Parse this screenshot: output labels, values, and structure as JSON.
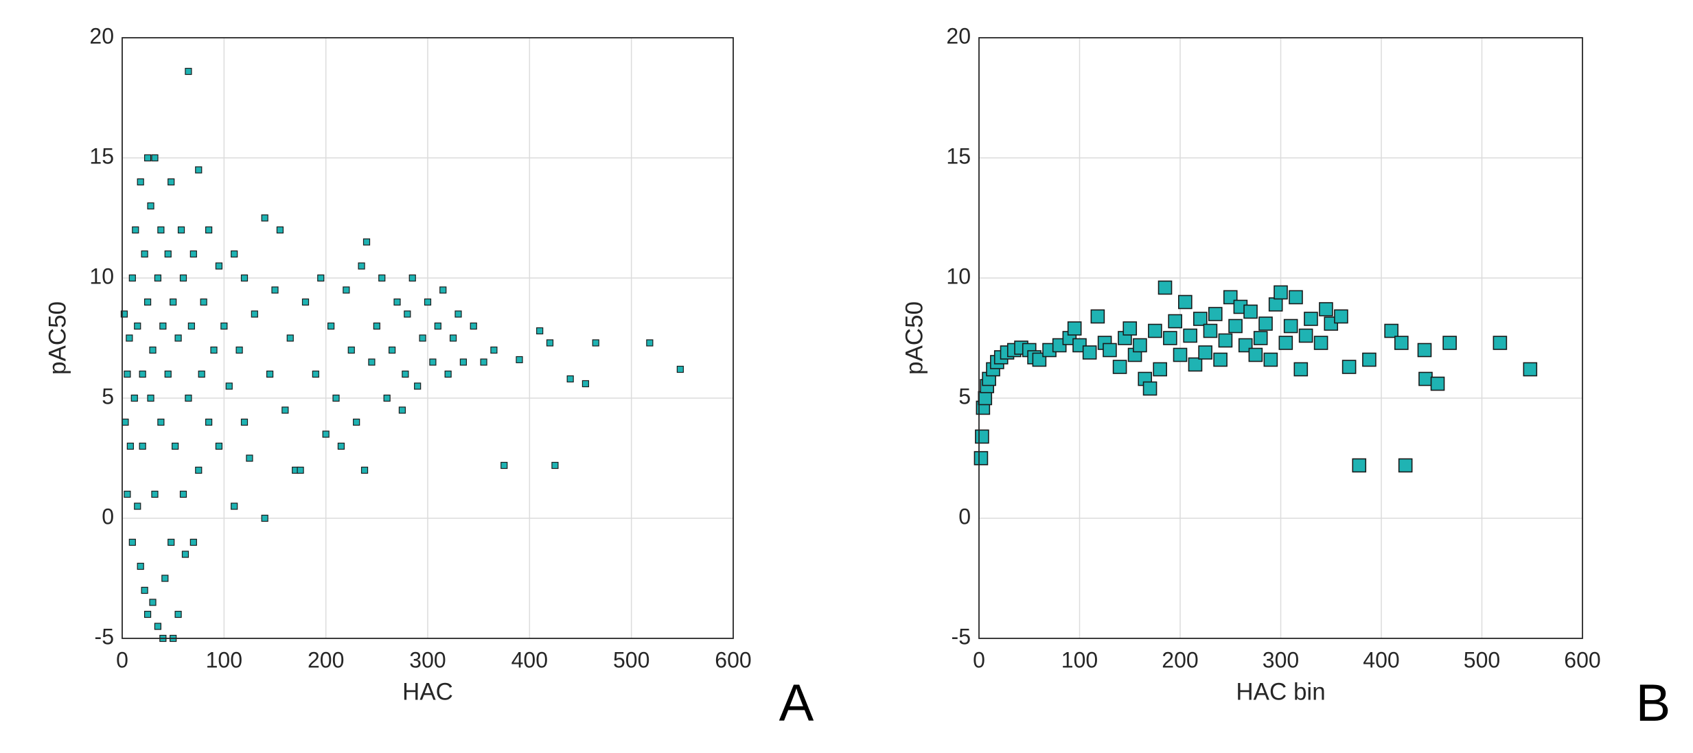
{
  "chart_data": [
    {
      "type": "scatter",
      "x_label": "HAC",
      "y_label": "pAC50",
      "annotation": "A",
      "color": "#1fb3b3",
      "grid": true,
      "xlim": [
        0,
        600
      ],
      "ylim": [
        -5,
        20
      ],
      "xticks": [
        0,
        100,
        200,
        300,
        400,
        500,
        600
      ],
      "yticks": [
        -5,
        0,
        5,
        10,
        15,
        20
      ],
      "x": [
        2,
        3,
        5,
        5,
        7,
        8,
        10,
        10,
        12,
        13,
        15,
        15,
        18,
        18,
        20,
        20,
        22,
        22,
        25,
        25,
        25,
        28,
        28,
        30,
        30,
        32,
        32,
        35,
        35,
        38,
        38,
        40,
        40,
        42,
        45,
        45,
        48,
        48,
        50,
        50,
        52,
        55,
        55,
        58,
        60,
        60,
        62,
        65,
        65,
        68,
        70,
        70,
        75,
        75,
        78,
        80,
        85,
        85,
        90,
        95,
        95,
        100,
        105,
        110,
        110,
        115,
        120,
        120,
        125,
        130,
        140,
        140,
        145,
        150,
        155,
        160,
        165,
        170,
        175,
        180,
        190,
        195,
        200,
        205,
        210,
        215,
        220,
        225,
        230,
        235,
        238,
        240,
        245,
        250,
        255,
        260,
        265,
        270,
        275,
        278,
        280,
        285,
        290,
        295,
        300,
        305,
        310,
        315,
        320,
        325,
        330,
        335,
        345,
        355,
        365,
        375,
        390,
        410,
        420,
        425,
        440,
        455,
        465,
        518,
        548
      ],
      "values": [
        8.5,
        4,
        6,
        1,
        7.5,
        3,
        10,
        -1,
        5,
        12,
        0.5,
        8,
        14,
        -2,
        6,
        3,
        11,
        -3,
        15,
        9,
        -4,
        5,
        13,
        -3.5,
        7,
        1,
        15,
        10,
        -4.5,
        4,
        12,
        -5,
        8,
        -2.5,
        6,
        11,
        -1,
        14,
        -5,
        9,
        3,
        -4,
        7.5,
        12,
        1,
        10,
        -1.5,
        18.6,
        5,
        8,
        -1,
        11,
        14.5,
        2,
        6,
        9,
        4,
        12,
        7,
        3,
        10.5,
        8,
        5.5,
        0.5,
        11,
        7,
        4,
        10,
        2.5,
        8.5,
        0,
        12.5,
        6,
        9.5,
        12,
        4.5,
        7.5,
        2,
        2,
        9,
        6,
        10,
        3.5,
        8,
        5,
        3,
        9.5,
        7,
        4,
        10.5,
        2,
        11.5,
        6.5,
        8,
        10,
        5,
        7,
        9,
        4.5,
        6,
        8.5,
        10,
        5.5,
        7.5,
        9,
        6.5,
        8,
        9.5,
        6,
        7.5,
        8.5,
        6.5,
        8,
        6.5,
        7,
        2.2,
        6.6,
        7.8,
        7.3,
        2.2,
        5.8,
        5.6,
        7.3,
        7.3,
        6.2
      ]
    },
    {
      "type": "scatter",
      "x_label": "HAC bin",
      "y_label": "pAC50",
      "annotation": "B",
      "color": "#1fb3b3",
      "grid": true,
      "xlim": [
        0,
        600
      ],
      "ylim": [
        -5,
        20
      ],
      "xticks": [
        0,
        100,
        200,
        300,
        400,
        500,
        600
      ],
      "yticks": [
        -5,
        0,
        5,
        10,
        15,
        20
      ],
      "x": [
        2,
        3,
        4,
        6,
        8,
        10,
        14,
        18,
        22,
        28,
        35,
        42,
        50,
        55,
        60,
        70,
        80,
        90,
        95,
        100,
        110,
        118,
        125,
        130,
        140,
        145,
        150,
        155,
        160,
        165,
        170,
        175,
        180,
        185,
        190,
        195,
        200,
        205,
        210,
        215,
        220,
        225,
        230,
        235,
        240,
        245,
        250,
        255,
        260,
        265,
        270,
        275,
        280,
        285,
        290,
        295,
        300,
        305,
        310,
        315,
        320,
        325,
        330,
        340,
        345,
        350,
        360,
        368,
        378,
        388,
        410,
        420,
        424,
        443,
        444,
        456,
        468,
        518,
        548
      ],
      "values": [
        2.5,
        3.4,
        4.6,
        5,
        5.5,
        5.8,
        6.2,
        6.5,
        6.7,
        6.9,
        7,
        7.1,
        7,
        6.7,
        6.6,
        7,
        7.2,
        7.5,
        7.9,
        7.2,
        6.9,
        8.4,
        7.3,
        7,
        6.3,
        7.5,
        7.9,
        6.8,
        7.2,
        5.8,
        5.4,
        7.8,
        6.2,
        9.6,
        7.5,
        8.2,
        6.8,
        9,
        7.6,
        6.4,
        8.3,
        6.9,
        7.8,
        8.5,
        6.6,
        7.4,
        9.2,
        8,
        8.8,
        7.2,
        8.6,
        6.8,
        7.5,
        8.1,
        6.6,
        8.9,
        9.4,
        7.3,
        8,
        9.2,
        6.2,
        7.6,
        8.3,
        7.3,
        8.7,
        8.1,
        8.4,
        6.3,
        2.2,
        6.6,
        7.8,
        7.3,
        2.2,
        7,
        5.8,
        5.6,
        7.3,
        7.3,
        6.2
      ]
    }
  ]
}
